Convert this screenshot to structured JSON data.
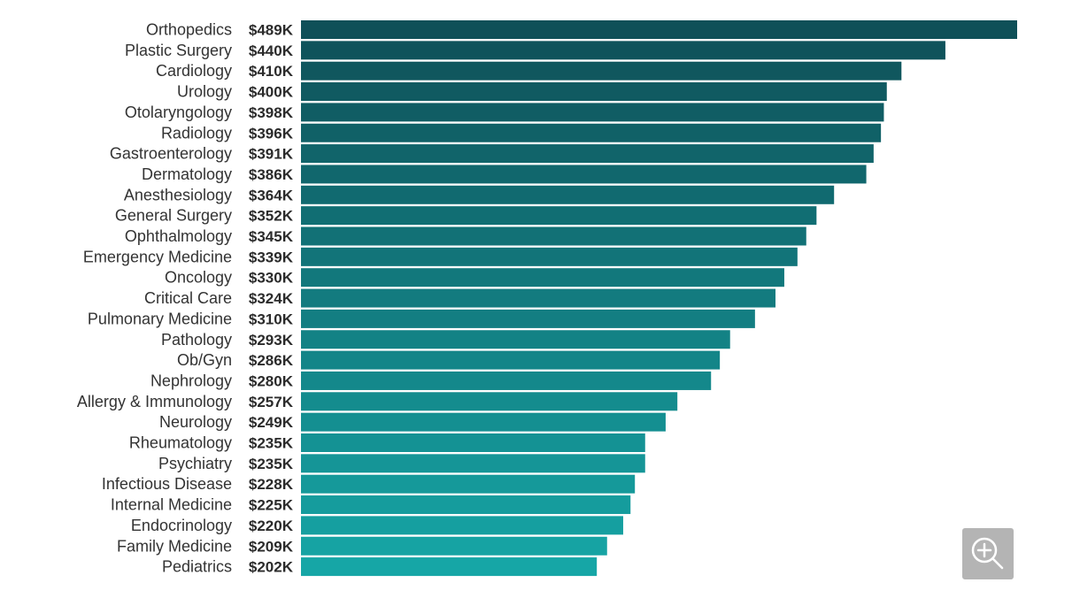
{
  "chart_data": {
    "type": "bar",
    "orientation": "horizontal",
    "title": "",
    "xlabel": "",
    "ylabel": "",
    "xlim": [
      0,
      489
    ],
    "grid": false,
    "legend": "none",
    "categories": [
      "Orthopedics",
      "Plastic Surgery",
      "Cardiology",
      "Urology",
      "Otolaryngology",
      "Radiology",
      "Gastroenterology",
      "Dermatology",
      "Anesthesiology",
      "General Surgery",
      "Ophthalmology",
      "Emergency Medicine",
      "Oncology",
      "Critical Care",
      "Pulmonary Medicine",
      "Pathology",
      "Ob/Gyn",
      "Nephrology",
      "Allergy & Immunology",
      "Neurology",
      "Rheumatology",
      "Psychiatry",
      "Infectious Disease",
      "Internal Medicine",
      "Endocrinology",
      "Family Medicine",
      "Pediatrics"
    ],
    "values": [
      489,
      440,
      410,
      400,
      398,
      396,
      391,
      386,
      364,
      352,
      345,
      339,
      330,
      324,
      310,
      293,
      286,
      280,
      257,
      249,
      235,
      235,
      228,
      225,
      220,
      209,
      202
    ],
    "value_labels": [
      "$489K",
      "$440K",
      "$410K",
      "$400K",
      "$398K",
      "$396K",
      "$391K",
      "$386K",
      "$364K",
      "$352K",
      "$345K",
      "$339K",
      "$330K",
      "$324K",
      "$310K",
      "$293K",
      "$286K",
      "$280K",
      "$257K",
      "$249K",
      "$235K",
      "$235K",
      "$228K",
      "$225K",
      "$220K",
      "$209K",
      "$202K"
    ],
    "colors": {
      "top": "#0f5058",
      "bottom": "#16a6a6"
    }
  },
  "controls": {
    "zoom_icon": "zoom-in-icon",
    "zoom_button_bg": "#b4b4b4"
  }
}
